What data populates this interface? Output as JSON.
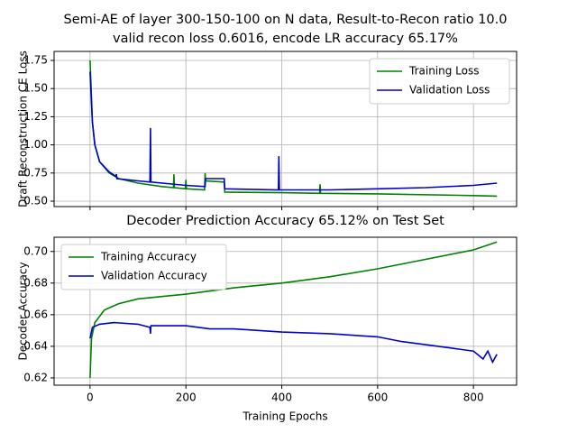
{
  "chart_data": [
    {
      "type": "line",
      "title": [
        "Semi-AE of layer 300-150-100 on N data, Result-to-Recon ratio 10.0",
        "valid recon loss 0.6016, encode LR accuracy 65.17%"
      ],
      "y_label": "Draft Reconstruction CE Loss",
      "xlim": [
        -75,
        890
      ],
      "xticks": [
        0,
        200,
        400,
        600,
        800
      ],
      "show_xtick_labels": false,
      "ylim": [
        0.452,
        1.83
      ],
      "yticks": [
        {
          "value": 0.5,
          "label": "0.50"
        },
        0.75,
        {
          "value": 1.0,
          "label": "1.00"
        },
        1.25,
        {
          "value": 1.5,
          "label": "1.50"
        },
        1.75
      ],
      "grid": true,
      "legend": "upper right",
      "series": [
        {
          "name": "Training Loss",
          "color": "#008000",
          "x": [
            0,
            5,
            10,
            20,
            40,
            60,
            100,
            150,
            174,
            175,
            176,
            199,
            200,
            201,
            239,
            240,
            241,
            280,
            281,
            400,
            479,
            480,
            481,
            600,
            800,
            849
          ],
          "values": [
            1.75,
            1.2,
            1.0,
            0.85,
            0.75,
            0.7,
            0.66,
            0.63,
            0.62,
            0.74,
            0.62,
            0.61,
            0.69,
            0.61,
            0.6,
            0.75,
            0.68,
            0.67,
            0.58,
            0.575,
            0.57,
            0.65,
            0.57,
            0.565,
            0.55,
            0.545
          ]
        },
        {
          "name": "Validation Loss",
          "color": "#0000cc",
          "x": [
            0,
            5,
            10,
            20,
            40,
            54,
            55,
            56,
            100,
            125,
            126,
            127,
            200,
            240,
            241,
            280,
            281,
            393,
            394,
            395,
            500,
            600,
            700,
            800,
            849
          ],
          "values": [
            1.65,
            1.2,
            1.0,
            0.85,
            0.76,
            0.72,
            0.74,
            0.7,
            0.68,
            0.67,
            1.15,
            0.67,
            0.64,
            0.63,
            0.7,
            0.7,
            0.61,
            0.6,
            0.9,
            0.6,
            0.6,
            0.61,
            0.62,
            0.64,
            0.66
          ]
        }
      ]
    },
    {
      "type": "line",
      "title": [
        "Decoder Prediction Accuracy 65.12% on Test Set"
      ],
      "x_label": "Training Epochs",
      "y_label": "Decoder Accuracy",
      "xlim": [
        -75,
        890
      ],
      "xticks": [
        0,
        200,
        400,
        600,
        800
      ],
      "show_xtick_labels": true,
      "ylim": [
        0.6154,
        0.709
      ],
      "yticks": [
        0.62,
        0.64,
        0.66,
        0.68,
        {
          "value": 0.7,
          "label": "0.70"
        }
      ],
      "grid": true,
      "legend": "upper left",
      "series": [
        {
          "name": "Training Accuracy",
          "color": "#008000",
          "x": [
            0,
            3,
            10,
            30,
            60,
            100,
            200,
            300,
            400,
            500,
            600,
            700,
            800,
            849
          ],
          "values": [
            0.62,
            0.645,
            0.655,
            0.663,
            0.667,
            0.67,
            0.673,
            0.677,
            0.68,
            0.684,
            0.689,
            0.695,
            0.701,
            0.706
          ]
        },
        {
          "name": "Validation Accuracy",
          "color": "#0000cc",
          "x": [
            0,
            5,
            20,
            50,
            100,
            125,
            126,
            127,
            200,
            250,
            300,
            400,
            500,
            600,
            650,
            700,
            750,
            800,
            820,
            830,
            840,
            849
          ],
          "values": [
            0.645,
            0.652,
            0.654,
            0.655,
            0.654,
            0.652,
            0.648,
            0.653,
            0.653,
            0.651,
            0.651,
            0.649,
            0.648,
            0.646,
            0.643,
            0.641,
            0.639,
            0.637,
            0.632,
            0.637,
            0.63,
            0.635
          ]
        }
      ]
    }
  ]
}
